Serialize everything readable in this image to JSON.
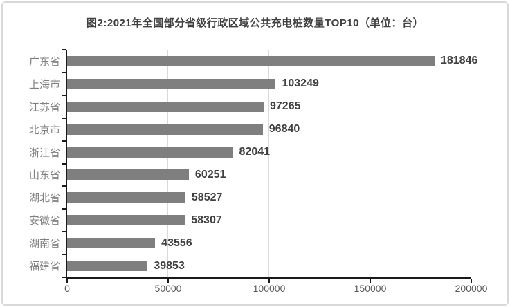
{
  "frame": {
    "background": "#ffffff",
    "border_color": "#d9d9d9"
  },
  "chart_data": {
    "type": "bar",
    "orientation": "horizontal",
    "title": "图2:2021年全国部分省级行政区域公共充电桩数量TOP10（单位：台）",
    "categories": [
      "广东省",
      "上海市",
      "江苏省",
      "北京市",
      "浙江省",
      "山东省",
      "湖北省",
      "安徽省",
      "湖南省",
      "福建省"
    ],
    "values": [
      181846,
      103249,
      97265,
      96840,
      82041,
      60251,
      58527,
      58307,
      43556,
      39853
    ],
    "value_labels": [
      "181846",
      "103249",
      "97265",
      "96840",
      "82041",
      "60251",
      "58527",
      "58307",
      "43556",
      "39853"
    ],
    "xlabel": "",
    "ylabel": "",
    "xlim": [
      0,
      200000
    ],
    "x_ticks": [
      0,
      50000,
      100000,
      150000,
      200000
    ],
    "x_tick_labels": [
      "0",
      "50000",
      "100000",
      "150000",
      "200000"
    ],
    "grid": true,
    "legend": "none",
    "colors": {
      "bar": "#7f7f7f",
      "value_label": "#404040",
      "category_label": "#808080",
      "axis_line": "#1a1a1a",
      "tick_label": "#595959",
      "gridline": "#d9d9d9",
      "title": "#404040"
    }
  }
}
